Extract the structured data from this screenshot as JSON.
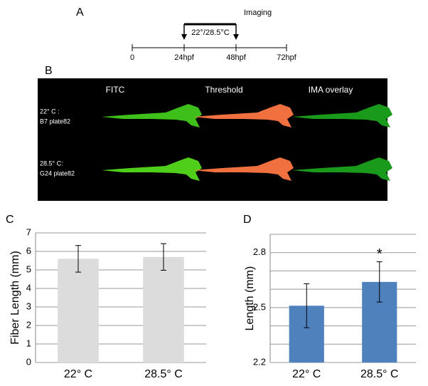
{
  "figure": {
    "panel_labels": [
      "A",
      "B",
      "C",
      "D"
    ],
    "timeline": {
      "imaging": "Imaging",
      "temperature": "22°/28.5°C",
      "points": [
        "0",
        "24hpf",
        "48hpf",
        "72hpf"
      ]
    },
    "image_panel": {
      "columns": [
        "FITC",
        "Threshold",
        "IMA overlay"
      ],
      "rows": [
        [
          "22° C :",
          "B7 plate82"
        ],
        [
          "28.5° C:",
          "G24 plate82"
        ]
      ]
    }
  },
  "chart_data": [
    {
      "type": "bar",
      "y_label": "Fiber Length (mm)",
      "categories": [
        "22° C",
        "28.5° C"
      ],
      "series": [
        {
          "color": "#dcdcdc",
          "values": [
            5.6,
            5.7
          ],
          "errors": [
            0.72,
            0.72
          ]
        }
      ],
      "ylim": [
        0,
        7
      ],
      "yticks": [
        0,
        1,
        2,
        3,
        4,
        5,
        6,
        7
      ],
      "grid": true
    },
    {
      "type": "bar",
      "y_label": "Length (mm)",
      "categories": [
        "22° C",
        "28.5° C"
      ],
      "series": [
        {
          "color": "#4f81bd",
          "values": [
            2.51,
            2.64
          ],
          "errors": [
            0.12,
            0.11
          ]
        }
      ],
      "annotations": [
        {
          "text": "*",
          "category": 1
        }
      ],
      "ylim": [
        2.2,
        2.9
      ],
      "yticks": [
        2.2,
        2.5,
        2.8
      ],
      "minor_yticks": [
        2.3,
        2.4,
        2.6,
        2.7,
        2.9
      ],
      "grid": true
    }
  ]
}
